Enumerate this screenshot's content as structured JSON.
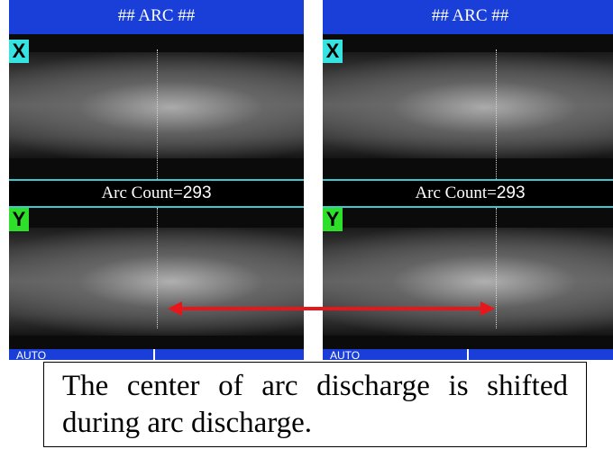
{
  "panels": [
    {
      "title": "## ARC ##",
      "x_label": "X",
      "y_label": "Y",
      "arc_count_label": "Arc Count=",
      "arc_count_value": "293",
      "status_left": "AUTO"
    },
    {
      "title": "## ARC ##",
      "x_label": "X",
      "y_label": "Y",
      "arc_count_label": "Arc Count=",
      "arc_count_value": "293",
      "status_left": "AUTO"
    }
  ],
  "caption": "The center of arc discharge is shifted during arc discharge.",
  "colors": {
    "title_bar": "#1a3fd8",
    "x_label_bg": "#37e3e0",
    "y_label_bg": "#2ee02a",
    "separator": "#3fc7cf",
    "arrow": "#e8161a"
  }
}
